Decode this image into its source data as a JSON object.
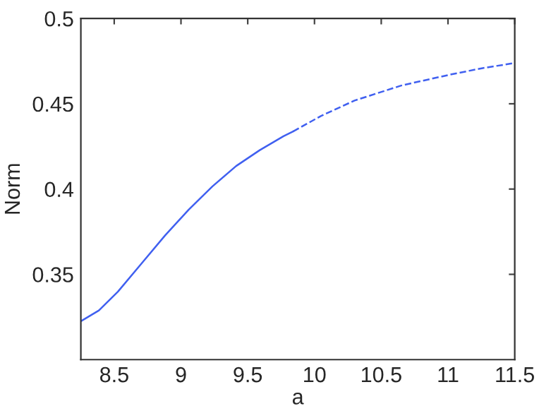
{
  "chart_data": {
    "type": "line",
    "xlabel": "a",
    "ylabel": "Norm",
    "xlim": [
      8.25,
      11.5
    ],
    "xticks": [
      8.5,
      9,
      9.5,
      10,
      10.5,
      11,
      11.5
    ],
    "ylim": [
      0.3,
      0.5
    ],
    "yticks": [
      0.35,
      0.4,
      0.45,
      0.5
    ],
    "grid": false,
    "series": [
      {
        "color": "#4060f0",
        "line_style": "solid",
        "x": [
          8.25,
          8.385,
          8.527,
          8.704,
          8.881,
          9.058,
          9.236,
          9.413,
          9.59,
          9.768,
          9.84
        ],
        "values": [
          0.3225,
          0.3288,
          0.3398,
          0.3563,
          0.3728,
          0.3879,
          0.4016,
          0.4135,
          0.4228,
          0.431,
          0.4338
        ]
      },
      {
        "color": "#4060f0",
        "line_style": "dashed",
        "x": [
          9.84,
          10.05,
          10.3,
          10.65,
          11.01,
          11.26,
          11.5
        ],
        "values": [
          0.4338,
          0.4429,
          0.4519,
          0.4607,
          0.467,
          0.4709,
          0.4739
        ]
      }
    ]
  }
}
